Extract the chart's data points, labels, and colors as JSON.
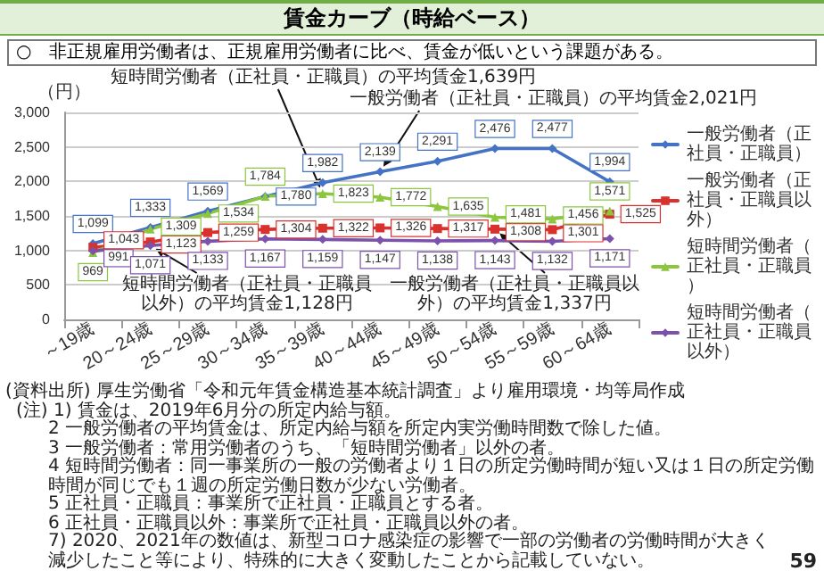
{
  "chart_data": {
    "type": "line",
    "title": "賃金カーブ（時給ベース）",
    "subtitle": "○　非正規雇用労働者は、正規雇用労働者に比べ、賃金が低いという課題がある。",
    "ylabel": "（円）",
    "categories": [
      "～19歳",
      "20～24歳",
      "25～29歳",
      "30～34歳",
      "35～39歳",
      "40～44歳",
      "45～49歳",
      "50～54歳",
      "55～59歳",
      "60～64歳"
    ],
    "series": [
      {
        "name": "一般労働者（正社員・正職員）",
        "color": "#4472c4",
        "marker": "diamond",
        "values": [
          1099,
          1333,
          1569,
          1780,
          1982,
          2139,
          2291,
          2476,
          2477,
          1994
        ],
        "value_labels": [
          "1,099",
          "1,333",
          "1,569",
          "1,780",
          "1,982",
          "2,139",
          "2,291",
          "2,476",
          "2,477",
          "1,994"
        ]
      },
      {
        "name": "一般労働者（正社員・正職員以外）",
        "color": "#d9312d",
        "marker": "square",
        "values": [
          1043,
          1123,
          1259,
          1304,
          1322,
          1326,
          1317,
          1308,
          1301,
          1525
        ],
        "value_labels": [
          "1,043",
          "1,123",
          "1,259",
          "1,304",
          "1,322",
          "1,326",
          "1,317",
          "1,308",
          "1,301",
          "1,525"
        ]
      },
      {
        "name": "短時間労働者（正社員・正職員）",
        "color": "#8cc63f",
        "marker": "triangle",
        "values": [
          969,
          1309,
          1534,
          1784,
          1823,
          1772,
          1635,
          1481,
          1456,
          1571
        ],
        "value_labels": [
          "969",
          "1,309",
          "1,534",
          "1,784",
          "1,823",
          "1,772",
          "1,635",
          "1,481",
          "1,456",
          "1,571"
        ]
      },
      {
        "name": "短時間労働者（正社員・正職員以外）",
        "color": "#7c52ab",
        "marker": "diamond",
        "values": [
          991,
          1071,
          1133,
          1167,
          1159,
          1147,
          1138,
          1143,
          1132,
          1171
        ],
        "value_labels": [
          "991",
          "1,071",
          "1,133",
          "1,167",
          "1,159",
          "1,147",
          "1,138",
          "1,143",
          "1,132",
          "1,171"
        ]
      }
    ],
    "ylim": [
      0,
      3000
    ],
    "yticks": [
      0,
      500,
      {
        "value": 1000,
        "label": "1,000"
      },
      {
        "value": 1500,
        "label": "1,500"
      },
      {
        "value": 2000,
        "label": "2,000"
      },
      {
        "value": 2500,
        "label": "2,500"
      },
      {
        "value": 3000,
        "label": "3,000"
      }
    ],
    "grid": "y",
    "legend": "right",
    "annotations": [
      {
        "text": "短時間労働者（正社員・正職員）の平均賃金1,639円",
        "x": "35～39歳",
        "y": 1823
      },
      {
        "text": "一般労働者（正社員・正職員）の平均賃金2,021円",
        "x": "40～44歳",
        "y": 2139
      },
      {
        "text": "一般労働者（正社員・正職員以外）の平均賃金1,337円",
        "x": "50～54歳",
        "y": 1308
      },
      {
        "text": "短時間労働者（正社員・正職員以外）の平均賃金1,128円",
        "x": "20～24歳",
        "y": 1071
      },
      "(資料出所) 厚生労働省「令和元年賃金構造基本統計調査」より雇用環境・均等局作成",
      "(注) 1) 賃金は、2019年6月分の所定内給与額。",
      "2 一般労働者の平均賃金は、所定内給与額を所定内実労働時間数で除した値。",
      "3 一般労働者：常用労働者のうち、「短時間労働者」以外の者。",
      "4 短時間労働者：同一事業所の一般の労働者より１日の所定労働時間が短い又は１日の所定労働時間が同じでも１週の所定労働日数が少ない労働者。",
      "5 正社員・正職員：事業所で正社員・正職員とする者。",
      "6 正社員・正職員以外：事業所で正社員・正職員以外の者。",
      "7) 2020、2021年の数値は、新型コロナ感染症の影響で一部の労働者の労働時間が大きく減少したこと等により、特殊的に大きく変動したことから記載していない。",
      "59"
    ]
  }
}
